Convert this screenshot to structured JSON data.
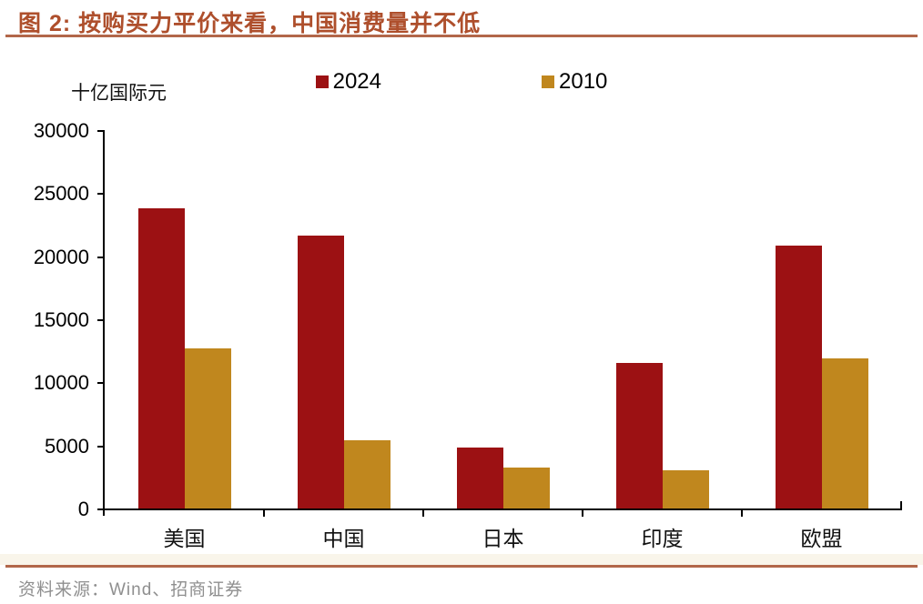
{
  "page": {
    "title": "图 2: 按购买力平价来看，中国消费量并不低",
    "unit_label": "十亿国际元",
    "source": "资料来源：Wind、招商证券"
  },
  "colors": {
    "accent_rule": "#B2674A",
    "title_text": "#AE4F2C",
    "series_2024": "#9C1113",
    "series_2010": "#C0871E",
    "axis": "#000000",
    "footer_text": "#8F8F8F"
  },
  "chart_data": {
    "type": "bar",
    "title": "按购买力平价来看，中国消费量并不低",
    "xlabel": "",
    "ylabel": "十亿国际元",
    "categories": [
      "美国",
      "中国",
      "日本",
      "印度",
      "欧盟"
    ],
    "series": [
      {
        "name": "2024",
        "color": "#9C1113",
        "values": [
          23900,
          21700,
          4900,
          11600,
          20900
        ]
      },
      {
        "name": "2010",
        "color": "#C0871E",
        "values": [
          12800,
          5500,
          3300,
          3100,
          12000
        ]
      }
    ],
    "ylim": [
      0,
      30000
    ],
    "ytick_step": 5000,
    "grid": false,
    "legend_position": "top-center"
  }
}
